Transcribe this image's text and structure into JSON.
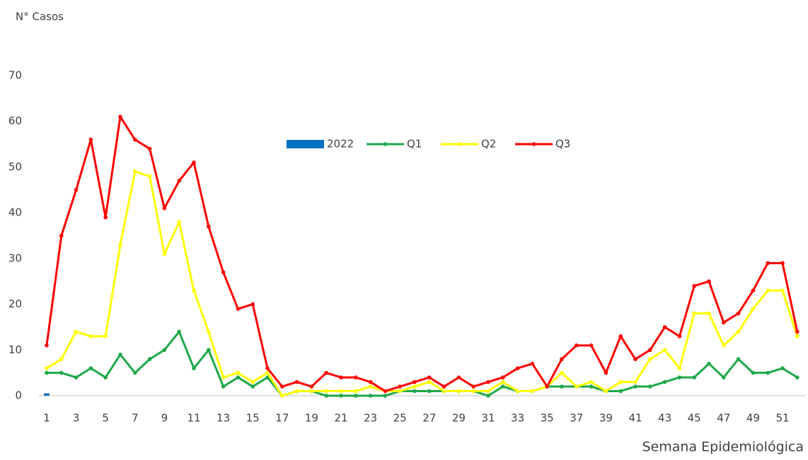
{
  "chart_data": {
    "type": "line",
    "y_label": "N° Casos",
    "x_label": "Semana Epidemiológica",
    "categories": [
      1,
      null,
      3,
      null,
      5,
      null,
      7,
      null,
      9,
      null,
      11,
      null,
      13,
      null,
      15,
      null,
      17,
      null,
      19,
      null,
      21,
      null,
      23,
      null,
      25,
      null,
      27,
      null,
      29,
      null,
      31,
      null,
      33,
      null,
      35,
      null,
      37,
      null,
      39,
      null,
      41,
      null,
      43,
      null,
      45,
      null,
      47,
      null,
      49,
      null,
      51,
      null
    ],
    "ylim": [
      0,
      70
    ],
    "yticks": [
      0,
      10,
      20,
      30,
      40,
      50,
      60,
      70
    ],
    "grid": false,
    "legend": "top",
    "series": [
      {
        "name": "2022",
        "type": "bar",
        "color": "#0070c0",
        "values": [
          0.5,
          null,
          null,
          null,
          null,
          null,
          null,
          null,
          null,
          null,
          null,
          null,
          null,
          null,
          null,
          null,
          null,
          null,
          null,
          null,
          null,
          null,
          null,
          null,
          null,
          null,
          null,
          null,
          null,
          null,
          null,
          null,
          null,
          null,
          null,
          null,
          null,
          null,
          null,
          null,
          null,
          null,
          null,
          null,
          null,
          null,
          null,
          null,
          null,
          null,
          null,
          null
        ]
      },
      {
        "name": "Q1",
        "type": "line",
        "color": "#1ea84a",
        "values": [
          5,
          5,
          4,
          6,
          4,
          9,
          5,
          8,
          10,
          14,
          6,
          10,
          2,
          4,
          2,
          4,
          0,
          1,
          1,
          0,
          0,
          0,
          0,
          0,
          1,
          1,
          1,
          1,
          1,
          1,
          0,
          2,
          1,
          1,
          2,
          2,
          2,
          2,
          1,
          1,
          2,
          2,
          3,
          4,
          4,
          7,
          4,
          8,
          5,
          5,
          6,
          4
        ]
      },
      {
        "name": "Q2",
        "type": "line",
        "color": "#ffff00",
        "values": [
          6,
          8,
          14,
          13,
          13,
          33,
          49,
          48,
          31,
          38,
          23,
          14,
          4,
          5,
          3,
          5,
          0,
          1,
          1,
          1,
          1,
          1,
          2,
          1,
          1,
          2,
          3,
          1,
          1,
          1,
          1,
          3,
          1,
          1,
          2,
          5,
          2,
          3,
          1,
          3,
          3,
          8,
          10,
          6,
          18,
          18,
          11,
          14,
          19,
          23,
          23,
          13
        ]
      },
      {
        "name": "Q3",
        "type": "line",
        "color": "#ff0000",
        "values": [
          11,
          35,
          45,
          56,
          39,
          61,
          56,
          54,
          41,
          47,
          51,
          37,
          27,
          19,
          20,
          6,
          2,
          3,
          2,
          5,
          4,
          4,
          3,
          1,
          2,
          3,
          4,
          2,
          4,
          2,
          3,
          4,
          6,
          7,
          2,
          8,
          11,
          11,
          5,
          13,
          8,
          10,
          15,
          13,
          24,
          25,
          16,
          18,
          23,
          29,
          29,
          14
        ]
      }
    ]
  }
}
